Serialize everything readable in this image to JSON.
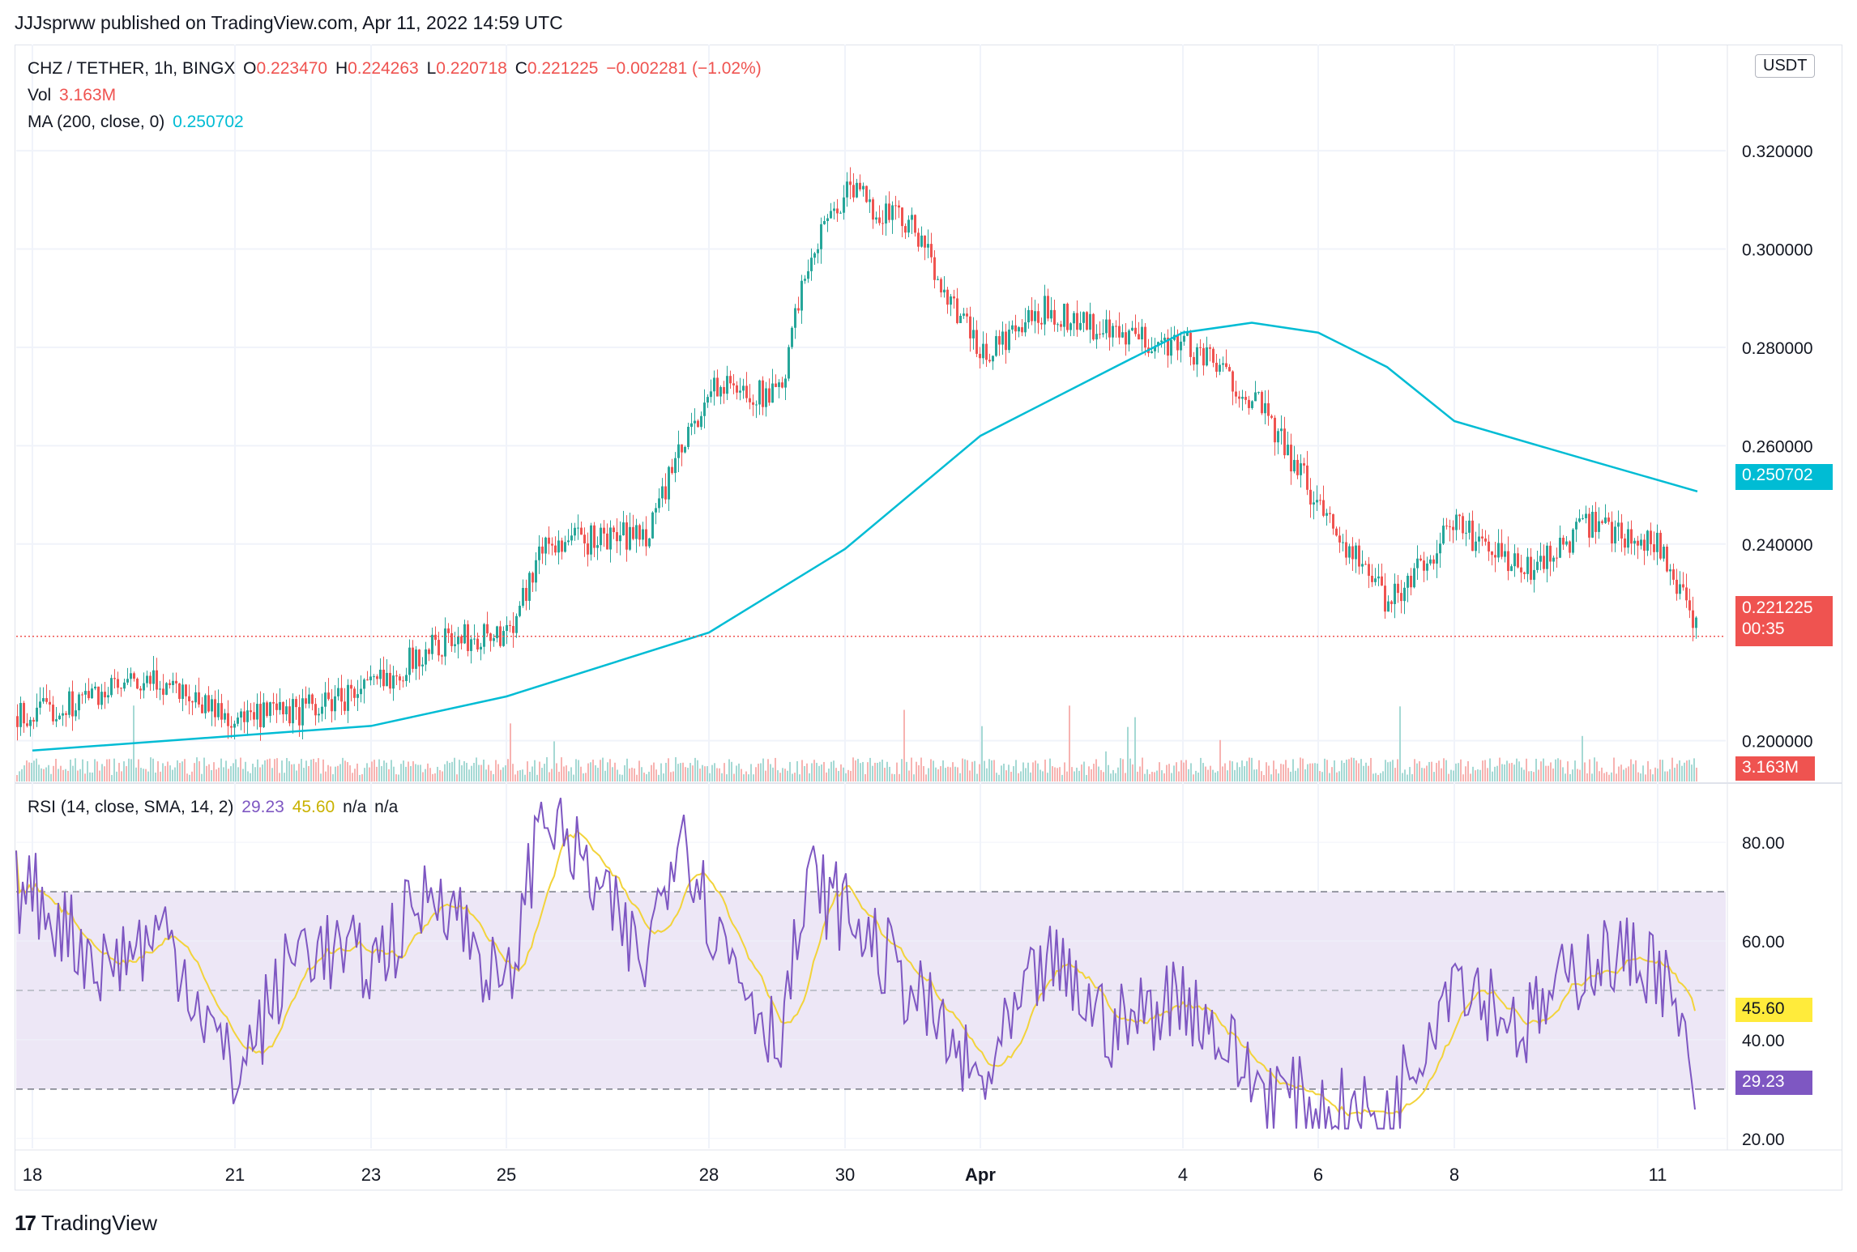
{
  "publisher": "JJJsprww published on TradingView.com, Apr 11, 2022 14:59 UTC",
  "legend": {
    "symbol": "CHZ / TETHER, 1h, BINGX",
    "o_label": "O",
    "o_value": "0.223470",
    "h_label": "H",
    "h_value": "0.224263",
    "l_label": "L",
    "l_value": "0.220718",
    "c_label": "C",
    "c_value": "0.221225",
    "change": "−0.002281 (−1.02%)",
    "vol_label": "Vol",
    "vol_value": "3.163M",
    "ma_label": "MA (200, close, 0)",
    "ma_value": "0.250702",
    "rsi_label": "RSI (14, close, SMA, 14, 2)",
    "rsi_value": "29.23",
    "rsi_sma_value": "45.60",
    "rsi_na1": "n/a",
    "rsi_na2": "n/a"
  },
  "currency_badge": "USDT",
  "price_tags": {
    "ma": "0.250702",
    "last": "0.221225",
    "countdown": "00:35",
    "volume": "3.163M",
    "rsi_sma": "45.60",
    "rsi": "29.23"
  },
  "footer_logo": "TradingView",
  "colors": {
    "up": "#26a69a",
    "down": "#ef5350",
    "ma": "#00bcd4",
    "rsi": "#7e57c2",
    "rsi_sma": "#f2d33a",
    "rsi_band": "#ede7f6"
  },
  "chart_data": [
    {
      "type": "candlestick",
      "title": "CHZ / TETHER, 1h, BINGX",
      "price_axis_ticks": [
        "0.200000",
        "0.240000",
        "0.260000",
        "0.280000",
        "0.300000",
        "0.320000"
      ],
      "time_axis_ticks": [
        "18",
        "21",
        "23",
        "25",
        "28",
        "30",
        "Apr",
        "4",
        "6",
        "8",
        "11"
      ],
      "ylim": [
        0.195,
        0.335
      ],
      "price_key_points": [
        {
          "x": "18",
          "y": 0.205
        },
        {
          "x": "19",
          "y": 0.21
        },
        {
          "x": "20",
          "y": 0.212
        },
        {
          "x": "21",
          "y": 0.204
        },
        {
          "x": "22",
          "y": 0.206
        },
        {
          "x": "23",
          "y": 0.211
        },
        {
          "x": "24",
          "y": 0.22
        },
        {
          "x": "25",
          "y": 0.222
        },
        {
          "x": "25.5",
          "y": 0.24
        },
        {
          "x": "27",
          "y": 0.242
        },
        {
          "x": "28",
          "y": 0.272
        },
        {
          "x": "29",
          "y": 0.27
        },
        {
          "x": "29.5",
          "y": 0.3
        },
        {
          "x": "30",
          "y": 0.312
        },
        {
          "x": "31",
          "y": 0.304
        },
        {
          "x": "Apr",
          "y": 0.278
        },
        {
          "x": "2",
          "y": 0.288
        },
        {
          "x": "3",
          "y": 0.282
        },
        {
          "x": "4",
          "y": 0.281
        },
        {
          "x": "5",
          "y": 0.27
        },
        {
          "x": "6",
          "y": 0.248
        },
        {
          "x": "7",
          "y": 0.228
        },
        {
          "x": "8",
          "y": 0.244
        },
        {
          "x": "9",
          "y": 0.234
        },
        {
          "x": "10",
          "y": 0.244
        },
        {
          "x": "11",
          "y": 0.24
        },
        {
          "x": "11.6",
          "y": 0.221
        }
      ],
      "ma_key_points": [
        {
          "x": "18",
          "y": 0.198
        },
        {
          "x": "21",
          "y": 0.201
        },
        {
          "x": "23",
          "y": 0.203
        },
        {
          "x": "25",
          "y": 0.209
        },
        {
          "x": "28",
          "y": 0.222
        },
        {
          "x": "30",
          "y": 0.239
        },
        {
          "x": "Apr",
          "y": 0.262
        },
        {
          "x": "3",
          "y": 0.276
        },
        {
          "x": "4",
          "y": 0.283
        },
        {
          "x": "5",
          "y": 0.285
        },
        {
          "x": "6",
          "y": 0.283
        },
        {
          "x": "7",
          "y": 0.276
        },
        {
          "x": "8",
          "y": 0.265
        },
        {
          "x": "10",
          "y": 0.257
        },
        {
          "x": "11.6",
          "y": 0.2507
        }
      ],
      "last_price": 0.221225,
      "ma_value": 0.250702,
      "volume_last": "3.163M"
    },
    {
      "type": "line",
      "title": "RSI (14, close, SMA, 14, 2)",
      "value_axis_ticks": [
        "20.00",
        "40.00",
        "60.00",
        "80.00"
      ],
      "ylim": [
        18,
        92
      ],
      "band": [
        30,
        70
      ],
      "midline": 50,
      "rsi_key_points": [
        {
          "x": "18",
          "y": 70
        },
        {
          "x": "19",
          "y": 55
        },
        {
          "x": "20",
          "y": 62
        },
        {
          "x": "21",
          "y": 32
        },
        {
          "x": "22",
          "y": 60
        },
        {
          "x": "23",
          "y": 55
        },
        {
          "x": "24",
          "y": 72
        },
        {
          "x": "25",
          "y": 48
        },
        {
          "x": "25.5",
          "y": 88
        },
        {
          "x": "27",
          "y": 55
        },
        {
          "x": "27.5",
          "y": 86
        },
        {
          "x": "28",
          "y": 65
        },
        {
          "x": "29",
          "y": 40
        },
        {
          "x": "29.5",
          "y": 72
        },
        {
          "x": "30",
          "y": 66
        },
        {
          "x": "31",
          "y": 50
        },
        {
          "x": "Apr",
          "y": 30
        },
        {
          "x": "2",
          "y": 56
        },
        {
          "x": "3",
          "y": 42
        },
        {
          "x": "4",
          "y": 50
        },
        {
          "x": "5",
          "y": 32
        },
        {
          "x": "6",
          "y": 26
        },
        {
          "x": "7",
          "y": 24
        },
        {
          "x": "8",
          "y": 55
        },
        {
          "x": "9",
          "y": 42
        },
        {
          "x": "10",
          "y": 57
        },
        {
          "x": "11",
          "y": 56
        },
        {
          "x": "11.6",
          "y": 29.23
        }
      ],
      "rsi_last": 29.23,
      "sma_last": 45.6
    }
  ]
}
